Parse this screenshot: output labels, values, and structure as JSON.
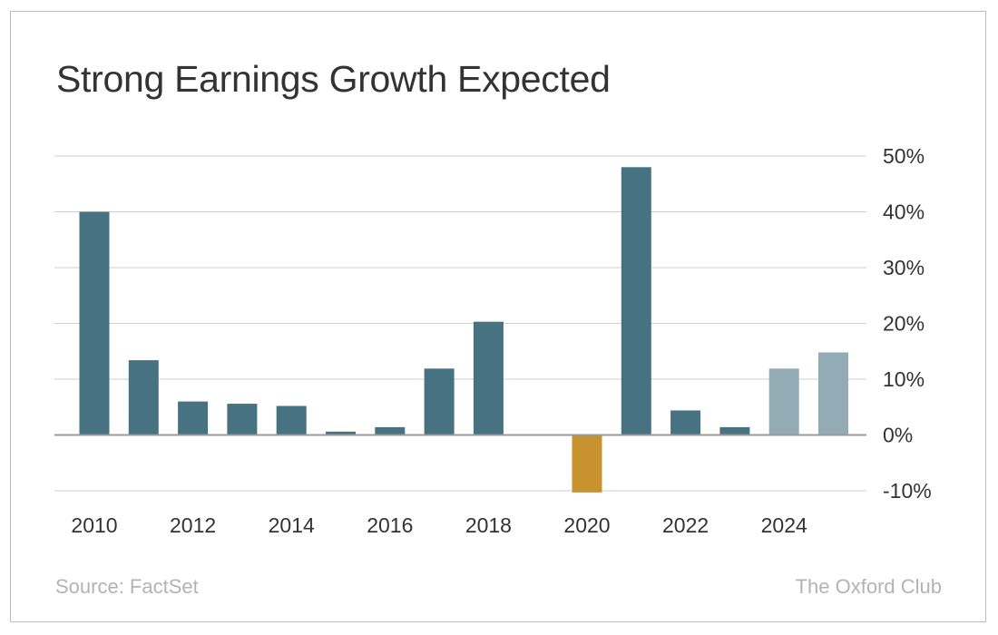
{
  "title": "Strong Earnings Growth Expected",
  "source": "Source: FactSet",
  "brand": "The Oxford Club",
  "chart_data": {
    "type": "bar",
    "x": [
      2010,
      2011,
      2012,
      2013,
      2014,
      2015,
      2016,
      2017,
      2018,
      2019,
      2020,
      2021,
      2022,
      2023,
      2024,
      2025
    ],
    "values": [
      40,
      13.4,
      6,
      5.6,
      5.2,
      0.6,
      1.4,
      11.9,
      20.3,
      0,
      -10.3,
      48,
      4.4,
      1.4,
      11.9,
      14.8
    ],
    "bar_kind": [
      "actual",
      "actual",
      "actual",
      "actual",
      "actual",
      "actual",
      "actual",
      "actual",
      "actual",
      "actual",
      "negative",
      "actual",
      "actual",
      "actual",
      "expected",
      "expected"
    ],
    "colors": {
      "actual": "#477282",
      "negative": "#c8932e",
      "expected": "#93abb5",
      "grid": "#cfcfcf",
      "baseline": "#9a9a9a",
      "tick_text": "#333333"
    },
    "x_tick_labels": [
      "2010",
      "2012",
      "2014",
      "2016",
      "2018",
      "2020",
      "2022",
      "2024"
    ],
    "y_ticks": [
      50,
      40,
      30,
      20,
      10,
      0,
      -10
    ],
    "y_tick_labels": [
      "50%",
      "40%",
      "30%",
      "20%",
      "10%",
      "0%",
      "-10%"
    ],
    "ylim": [
      -10,
      50
    ],
    "y_axis_side": "right",
    "grid": true,
    "legend": "none",
    "xlabel": "",
    "ylabel": ""
  }
}
